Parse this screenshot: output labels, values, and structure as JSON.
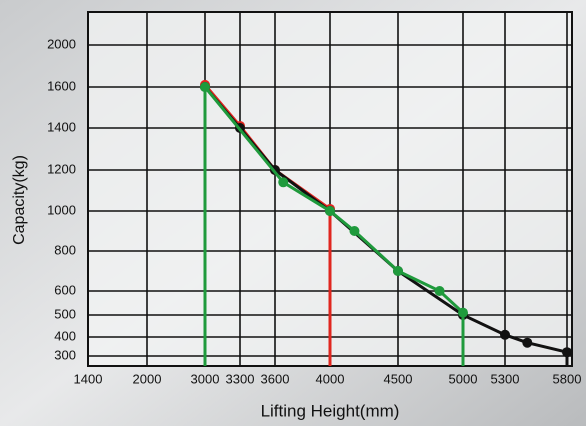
{
  "chart_data": {
    "type": "line",
    "xlabel": "Lifting Height(mm)",
    "ylabel": "Capacity(kg)",
    "xlim": [
      1400,
      5800
    ],
    "xticks": [
      1400,
      2000,
      3000,
      3300,
      3600,
      4000,
      4500,
      5000,
      5300,
      5800
    ],
    "ylim": [
      300,
      2000
    ],
    "yticks": [
      300,
      400,
      500,
      600,
      800,
      1000,
      1200,
      1400,
      1600,
      2000
    ],
    "grid": true,
    "series": [
      {
        "name": null,
        "color": "#e0261f",
        "x": [
          3000,
          3300,
          3600,
          4000
        ],
        "values": [
          1620,
          1410,
          1200,
          1010
        ]
      },
      {
        "name": null,
        "color": "#111111",
        "x": [
          3000,
          3300,
          3600,
          4000,
          4500,
          5000,
          5300,
          5480,
          5800
        ],
        "values": [
          1600,
          1400,
          1200,
          1000,
          700,
          500,
          410,
          370,
          320
        ]
      },
      {
        "name": null,
        "color": "#1f9a3c",
        "x": [
          3000,
          3660,
          4000,
          4180,
          4500,
          4820,
          5000
        ],
        "values": [
          1600,
          1140,
          1000,
          900,
          700,
          600,
          510
        ]
      }
    ]
  }
}
